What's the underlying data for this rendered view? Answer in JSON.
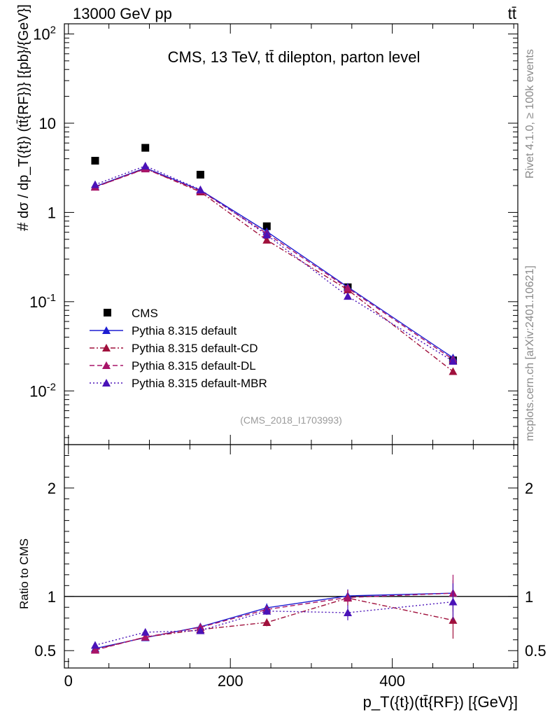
{
  "header": {
    "left_title": "13000 GeV pp",
    "right_title": "tt̄"
  },
  "side_text": {
    "rivet": "Rivet 4.1.0, ≥ 100k events",
    "mcplots": "mcplots.cern.ch [arXiv:2401.10621]"
  },
  "chart_data": [
    {
      "type": "scatter",
      "panel": "main",
      "title": "CMS, 13 TeV, tt̄ dilepton, parton level",
      "analysis_id": "(CMS_2018_I1703993)",
      "ylabel_prefix": "#",
      "ylabel": "dσ / dp_T({t}) (tt̄{RF})} [{pb}/{GeV}]",
      "yscale": "log",
      "ylim": [
        0.0025,
        130
      ],
      "xlim": [
        -5,
        555
      ],
      "x_ticks": [
        0,
        200,
        400
      ],
      "y_tick_labels": [
        "10^-2",
        "10^-1",
        "1",
        "10",
        "10^2"
      ],
      "x": [
        33,
        95,
        163,
        245,
        345,
        475
      ],
      "series": [
        {
          "name": "CMS",
          "style": "data",
          "color": "#000000",
          "values": [
            3.8,
            5.3,
            2.65,
            0.7,
            0.145,
            0.022
          ]
        },
        {
          "name": "Pythia 8.315 default",
          "style": "solid",
          "color": "#1e1ed2",
          "values": [
            1.95,
            3.15,
            1.78,
            0.61,
            0.146,
            0.0235
          ]
        },
        {
          "name": "Pythia 8.315 default-CD",
          "style": "dashdot",
          "color": "#a0103c",
          "values": [
            1.93,
            3.1,
            1.7,
            0.49,
            0.136,
            0.0165
          ]
        },
        {
          "name": "Pythia 8.315 default-DL",
          "style": "dashed",
          "color": "#a81468",
          "values": [
            1.92,
            3.08,
            1.75,
            0.58,
            0.142,
            0.0225
          ]
        },
        {
          "name": "Pythia 8.315 default-MBR",
          "style": "dotted",
          "color": "#4a12b8",
          "values": [
            2.05,
            3.32,
            1.8,
            0.56,
            0.115,
            0.0215
          ]
        }
      ]
    },
    {
      "type": "line",
      "panel": "ratio",
      "ylabel": "Ratio to CMS",
      "xlabel": "p_T({t})(tt̄{RF}) [{GeV}]",
      "ylim": [
        0.34,
        2.4
      ],
      "xlim": [
        -5,
        555
      ],
      "x_ticks": [
        0,
        200,
        400
      ],
      "y_ticks": [
        0.5,
        1,
        2
      ],
      "reference_line": 1,
      "x": [
        33,
        95,
        163,
        245,
        345,
        475
      ],
      "series": [
        {
          "name": "Pythia 8.315 default",
          "style": "solid",
          "color": "#1e1ed2",
          "values": [
            0.52,
            0.62,
            0.72,
            0.895,
            1.005,
            1.03
          ]
        },
        {
          "name": "Pythia 8.315 default-CD",
          "style": "dashdot",
          "color": "#a0103c",
          "values": [
            0.51,
            0.625,
            0.695,
            0.76,
            0.985,
            0.78
          ]
        },
        {
          "name": "Pythia 8.315 default-DL",
          "style": "dashed",
          "color": "#a81468",
          "values": [
            0.505,
            0.625,
            0.715,
            0.88,
            0.99,
            1.03
          ]
        },
        {
          "name": "Pythia 8.315 default-MBR",
          "style": "dotted",
          "color": "#4a12b8",
          "values": [
            0.55,
            0.67,
            0.685,
            0.865,
            0.85,
            0.95
          ]
        }
      ],
      "error_bars": {
        "default": [
          0.01,
          0.01,
          0.015,
          0.04,
          0.06,
          0.12
        ],
        "other": [
          0.01,
          0.01,
          0.02,
          0.035,
          0.07,
          0.17
        ]
      }
    }
  ]
}
